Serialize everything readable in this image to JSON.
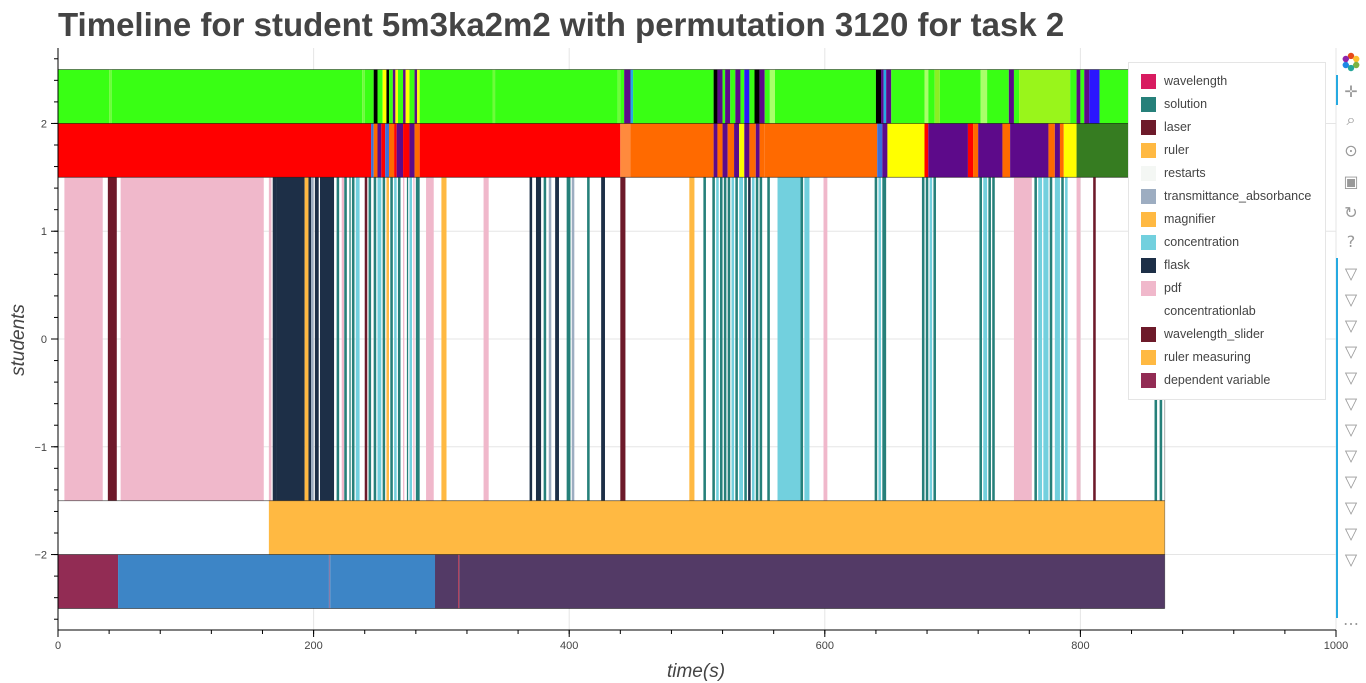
{
  "title": "Timeline for student 5m3ka2m2 with permutation 3120 for task 2",
  "chart_data": {
    "type": "timeline",
    "title": "Timeline for student 5m3ka2m2 with permutation 3120 for task 2",
    "xlabel": "time(s)",
    "ylabel": "students",
    "xlim": [
      0,
      1000
    ],
    "ylim": [
      -2.7,
      2.7
    ],
    "x_ticks": [
      0,
      200,
      400,
      600,
      800,
      1000
    ],
    "y_ticks": [
      {
        "v": 2,
        "label": "2"
      },
      {
        "v": 1,
        "label": "1"
      },
      {
        "v": 0,
        "label": "0"
      },
      {
        "v": -1,
        "label": "−1"
      },
      {
        "v": -2,
        "label": "−2"
      }
    ],
    "grid": true,
    "legend_position": "top-right",
    "legend": [
      {
        "name": "wavelength",
        "color": "#d81b60"
      },
      {
        "name": "solution",
        "color": "#26807a"
      },
      {
        "name": "laser",
        "color": "#6d1a2a"
      },
      {
        "name": "ruler",
        "color": "#ffb942"
      },
      {
        "name": "restarts",
        "color": "#f4f7f4"
      },
      {
        "name": "transmittance_absorbance",
        "color": "#9dadc1"
      },
      {
        "name": "magnifier",
        "color": "#ffb942"
      },
      {
        "name": "concentration",
        "color": "#72d0de"
      },
      {
        "name": "flask",
        "color": "#1d2f47"
      },
      {
        "name": "pdf",
        "color": "#f0b8cb"
      },
      {
        "name": "concentrationlab",
        "color": "#ffffff"
      },
      {
        "name": "wavelength_slider",
        "color": "#6d1a2a"
      },
      {
        "name": "ruler measuring",
        "color": "#ffb942"
      },
      {
        "name": "dependent variable",
        "color": "#922c54"
      }
    ],
    "rows": [
      {
        "name": "row-top",
        "y0": 2,
        "y1": 2.5,
        "segments": [
          [
            0,
            40,
            "#39ff14"
          ],
          [
            40,
            42,
            "#6efc3a"
          ],
          [
            42,
            238,
            "#39ff14"
          ],
          [
            238,
            240,
            "#6efc3a"
          ],
          [
            240,
            247,
            "#39ff14"
          ],
          [
            247,
            250,
            "#000000"
          ],
          [
            250,
            254,
            "#39ff14"
          ],
          [
            254,
            257,
            "#ffff00"
          ],
          [
            257,
            259,
            "#000000"
          ],
          [
            259,
            262,
            "#39ff14"
          ],
          [
            262,
            264,
            "#5d0a8a"
          ],
          [
            264,
            266,
            "#ffff00"
          ],
          [
            266,
            270,
            "#39ff14"
          ],
          [
            270,
            272,
            "#5d0a8a"
          ],
          [
            272,
            275,
            "#ffff00"
          ],
          [
            275,
            279,
            "#39ff14"
          ],
          [
            279,
            281,
            "#5d0a8a"
          ],
          [
            281,
            283,
            "#ffff00"
          ],
          [
            283,
            340,
            "#39ff14"
          ],
          [
            340,
            342,
            "#6efc3a"
          ],
          [
            342,
            438,
            "#39ff14"
          ],
          [
            438,
            440,
            "#6efc3a"
          ],
          [
            440,
            443,
            "#39ff14"
          ],
          [
            443,
            448,
            "#5d0a8a"
          ],
          [
            448,
            450,
            "#26aae1"
          ],
          [
            450,
            513,
            "#39ff14"
          ],
          [
            513,
            516,
            "#000000"
          ],
          [
            516,
            520,
            "#5d0a8a"
          ],
          [
            520,
            522,
            "#39ff14"
          ],
          [
            522,
            526,
            "#5d0a8a"
          ],
          [
            526,
            530,
            "#39ff14"
          ],
          [
            530,
            534,
            "#5d0a8a"
          ],
          [
            534,
            537,
            "#39ff14"
          ],
          [
            537,
            541,
            "#2b16ff"
          ],
          [
            541,
            545,
            "#39ff14"
          ],
          [
            545,
            549,
            "#000000"
          ],
          [
            549,
            553,
            "#5d0a8a"
          ],
          [
            553,
            557,
            "#39ff14"
          ],
          [
            557,
            561,
            "#a8ff6a"
          ],
          [
            561,
            640,
            "#39ff14"
          ],
          [
            640,
            644,
            "#000000"
          ],
          [
            644,
            646,
            "#5d0a8a"
          ],
          [
            646,
            648,
            "#26aae1"
          ],
          [
            648,
            652,
            "#5d0a8a"
          ],
          [
            652,
            678,
            "#39ff14"
          ],
          [
            678,
            681,
            "#a8ff6a"
          ],
          [
            681,
            686,
            "#39ff14"
          ],
          [
            686,
            690,
            "#8bef24"
          ],
          [
            690,
            722,
            "#39ff14"
          ],
          [
            722,
            727,
            "#a8ff6a"
          ],
          [
            727,
            744,
            "#39ff14"
          ],
          [
            744,
            748,
            "#5d0a8a"
          ],
          [
            748,
            752,
            "#39ff14"
          ],
          [
            752,
            792,
            "#99f51b"
          ],
          [
            792,
            797,
            "#39ff14"
          ],
          [
            797,
            800,
            "#5d0a8a"
          ],
          [
            800,
            803,
            "#39ff14"
          ],
          [
            803,
            807,
            "#5d0a8a"
          ],
          [
            807,
            815,
            "#2b16ff"
          ],
          [
            815,
            866,
            "#39ff14"
          ]
        ]
      },
      {
        "name": "row-2",
        "y0": 1.5,
        "y1": 2,
        "segments": [
          [
            0,
            245,
            "#ff0000"
          ],
          [
            245,
            247,
            "#3b6fd8"
          ],
          [
            247,
            250,
            "#ff6a00"
          ],
          [
            250,
            253,
            "#5d0a8a"
          ],
          [
            253,
            256,
            "#ff0000"
          ],
          [
            256,
            259,
            "#3b6fd8"
          ],
          [
            259,
            263,
            "#ff6a00"
          ],
          [
            263,
            265,
            "#ff0000"
          ],
          [
            265,
            270,
            "#5d0a8a"
          ],
          [
            270,
            275,
            "#ff0000"
          ],
          [
            275,
            279,
            "#5d0a8a"
          ],
          [
            279,
            283,
            "#ff6a00"
          ],
          [
            283,
            440,
            "#ff0000"
          ],
          [
            440,
            448,
            "#ff8a3d"
          ],
          [
            448,
            513,
            "#ff6a00"
          ],
          [
            513,
            516,
            "#5d0a8a"
          ],
          [
            516,
            520,
            "#ff6a00"
          ],
          [
            520,
            524,
            "#5d0a8a"
          ],
          [
            524,
            529,
            "#ff6a00"
          ],
          [
            529,
            533,
            "#5d0a8a"
          ],
          [
            533,
            537,
            "#ffff00"
          ],
          [
            537,
            541,
            "#5d0a8a"
          ],
          [
            541,
            546,
            "#ff6a00"
          ],
          [
            546,
            549,
            "#5d0a8a"
          ],
          [
            549,
            553,
            "#ff6a00"
          ],
          [
            553,
            641,
            "#ff6a00"
          ],
          [
            641,
            645,
            "#3b6fd8"
          ],
          [
            645,
            649,
            "#5d0a8a"
          ],
          [
            649,
            678,
            "#ffff00"
          ],
          [
            678,
            681,
            "#ff0000"
          ],
          [
            681,
            712,
            "#5d0a8a"
          ],
          [
            712,
            716,
            "#ff0000"
          ],
          [
            716,
            720,
            "#ff6a00"
          ],
          [
            720,
            739,
            "#5d0a8a"
          ],
          [
            739,
            745,
            "#ff6a00"
          ],
          [
            745,
            775,
            "#5d0a8a"
          ],
          [
            775,
            780,
            "#ff6a00"
          ],
          [
            780,
            784,
            "#5d0a8a"
          ],
          [
            784,
            787,
            "#ff6a00"
          ],
          [
            787,
            797,
            "#ffff00"
          ],
          [
            797,
            866,
            "#367c21"
          ]
        ]
      },
      {
        "name": "row-1",
        "y0": -1.5,
        "y1": 1.5,
        "segments": [
          [
            5,
            35,
            "#f0b8cb"
          ],
          [
            39,
            46,
            "#6d1a2a"
          ],
          [
            49,
            161,
            "#f0b8cb"
          ],
          [
            165,
            167,
            "#f0b8cb"
          ],
          [
            168,
            171,
            "#1d2f47"
          ],
          [
            171,
            193,
            "#1d2f47"
          ],
          [
            193,
            196,
            "#ffb942"
          ],
          [
            196,
            198,
            "#1d2f47"
          ],
          [
            198,
            200,
            "#9dadc1"
          ],
          [
            201,
            204,
            "#1d2f47"
          ],
          [
            205,
            216,
            "#1d2f47"
          ],
          [
            218,
            220,
            "#26807a"
          ],
          [
            222,
            224,
            "#f0b8cb"
          ],
          [
            224,
            226,
            "#26807a"
          ],
          [
            228,
            229,
            "#26807a"
          ],
          [
            230,
            232,
            "#26807a"
          ],
          [
            233,
            236,
            "#72d0de"
          ],
          [
            240,
            242,
            "#6d1a2a"
          ],
          [
            243,
            245,
            "#26807a"
          ],
          [
            247,
            249,
            "#26807a"
          ],
          [
            250,
            253,
            "#72d0de"
          ],
          [
            254,
            256,
            "#26807a"
          ],
          [
            257,
            259,
            "#ffb942"
          ],
          [
            260,
            262,
            "#26807a"
          ],
          [
            263,
            265,
            "#72d0de"
          ],
          [
            266,
            268,
            "#26807a"
          ],
          [
            270,
            271,
            "#f0b8cb"
          ],
          [
            273,
            274,
            "#26807a"
          ],
          [
            275,
            277,
            "#72d0de"
          ],
          [
            278,
            279,
            "#f0b8cb"
          ],
          [
            280,
            283,
            "#26807a"
          ],
          [
            288,
            294,
            "#f0b8cb"
          ],
          [
            300,
            304,
            "#ffb942"
          ],
          [
            333,
            337,
            "#f0b8cb"
          ],
          [
            369,
            371,
            "#1d2f47"
          ],
          [
            374,
            378,
            "#1d2f47"
          ],
          [
            380,
            382,
            "#26807a"
          ],
          [
            384,
            386,
            "#9dadc1"
          ],
          [
            389,
            392,
            "#1d2f47"
          ],
          [
            398,
            401,
            "#26807a"
          ],
          [
            402,
            404,
            "#9dadc1"
          ],
          [
            414,
            416,
            "#26807a"
          ],
          [
            425,
            428,
            "#1d2f47"
          ],
          [
            440,
            444,
            "#6d1a2a"
          ],
          [
            494,
            498,
            "#ffb942"
          ],
          [
            505,
            507,
            "#26807a"
          ],
          [
            512,
            514,
            "#26807a"
          ],
          [
            515,
            517,
            "#72d0de"
          ],
          [
            518,
            520,
            "#26807a"
          ],
          [
            521,
            523,
            "#26807a"
          ],
          [
            524,
            526,
            "#26807a"
          ],
          [
            527,
            529,
            "#72d0de"
          ],
          [
            530,
            532,
            "#26807a"
          ],
          [
            533,
            536,
            "#72d0de"
          ],
          [
            537,
            539,
            "#26807a"
          ],
          [
            540,
            542,
            "#1d2f47"
          ],
          [
            543,
            545,
            "#72d0de"
          ],
          [
            546,
            548,
            "#26807a"
          ],
          [
            549,
            551,
            "#26807a"
          ],
          [
            555,
            557,
            "#26807a"
          ],
          [
            563,
            581,
            "#72d0de"
          ],
          [
            581,
            583,
            "#26807a"
          ],
          [
            584,
            588,
            "#72d0de"
          ],
          [
            599,
            602,
            "#f0b8cb"
          ],
          [
            639,
            641,
            "#26807a"
          ],
          [
            642,
            644,
            "#72d0de"
          ],
          [
            645,
            648,
            "#26807a"
          ],
          [
            676,
            678,
            "#26807a"
          ],
          [
            679,
            681,
            "#26807a"
          ],
          [
            682,
            684,
            "#72d0de"
          ],
          [
            685,
            687,
            "#26807a"
          ],
          [
            721,
            723,
            "#26807a"
          ],
          [
            724,
            727,
            "#72d0de"
          ],
          [
            728,
            730,
            "#26807a"
          ],
          [
            731,
            733,
            "#26807a"
          ],
          [
            748,
            762,
            "#f0b8cb"
          ],
          [
            764,
            766,
            "#26807a"
          ],
          [
            767,
            770,
            "#72d0de"
          ],
          [
            771,
            775,
            "#72d0de"
          ],
          [
            776,
            778,
            "#26807a"
          ],
          [
            780,
            784,
            "#72d0de"
          ],
          [
            785,
            787,
            "#26807a"
          ],
          [
            788,
            790,
            "#72d0de"
          ],
          [
            797,
            800,
            "#f0b8cb"
          ],
          [
            810,
            812,
            "#6d1a2a"
          ],
          [
            858,
            860,
            "#26807a"
          ],
          [
            862,
            864,
            "#26807a"
          ]
        ]
      },
      {
        "name": "row-minus-1",
        "y0": -2,
        "y1": -1.5,
        "segments": [
          [
            165,
            866,
            "#ffb942"
          ]
        ]
      },
      {
        "name": "row-bottom",
        "y0": -2.5,
        "y1": -2,
        "segments": [
          [
            0,
            47,
            "#922c54"
          ],
          [
            47,
            212,
            "#3d85c6"
          ],
          [
            212,
            213,
            "#8a7ca8"
          ],
          [
            213,
            295,
            "#3d85c6"
          ],
          [
            295,
            313,
            "#533a66"
          ],
          [
            313,
            314,
            "#b0425e"
          ],
          [
            314,
            866,
            "#533a66"
          ]
        ]
      }
    ]
  },
  "toolbar": {
    "tools": [
      {
        "name": "bokeh-logo-icon"
      },
      {
        "name": "pan-icon",
        "glyph": "✛"
      },
      {
        "name": "box-zoom-icon",
        "glyph": "⌕"
      },
      {
        "name": "wheel-zoom-icon",
        "glyph": "⊙"
      },
      {
        "name": "save-icon",
        "glyph": "▣"
      },
      {
        "name": "reset-icon",
        "glyph": "↻"
      },
      {
        "name": "help-icon",
        "glyph": "?"
      },
      {
        "name": "hover-icon",
        "glyph": "▽"
      },
      {
        "name": "hover-icon",
        "glyph": "▽"
      },
      {
        "name": "hover-icon",
        "glyph": "▽"
      },
      {
        "name": "hover-icon",
        "glyph": "▽"
      },
      {
        "name": "hover-icon",
        "glyph": "▽"
      },
      {
        "name": "hover-icon",
        "glyph": "▽"
      },
      {
        "name": "hover-icon",
        "glyph": "▽"
      },
      {
        "name": "hover-icon",
        "glyph": "▽"
      },
      {
        "name": "hover-icon",
        "glyph": "▽"
      },
      {
        "name": "hover-icon",
        "glyph": "▽"
      },
      {
        "name": "hover-icon",
        "glyph": "▽"
      },
      {
        "name": "hover-icon",
        "glyph": "▽"
      },
      {
        "name": "more-icon",
        "glyph": "…"
      }
    ]
  }
}
